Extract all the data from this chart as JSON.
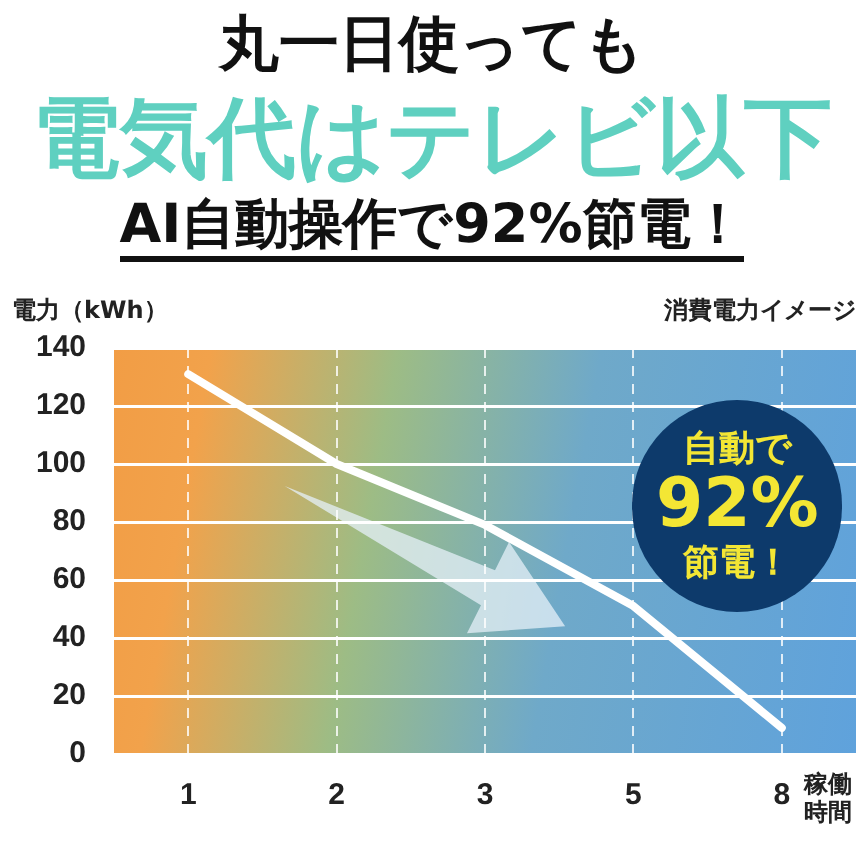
{
  "chart_data": {
    "type": "line",
    "title": "丸一日使っても",
    "subtitle": "電気代はテレビ以下",
    "xlabel": "稼働時間",
    "ylabel": "電力（kWh）",
    "annotations": [
      "AI自動操作で92%節電！",
      "消費電力イメージ",
      "自動で",
      "92%",
      "節電！"
    ],
    "categories": [
      "1",
      "2",
      "3",
      "5",
      "8"
    ],
    "series": [
      {
        "color": "#ffffff",
        "values": [
          131,
          100,
          79,
          51,
          9
        ]
      }
    ],
    "ylim": [
      0,
      140
    ],
    "yticks": [
      0,
      20,
      40,
      60,
      80,
      100,
      120,
      140
    ],
    "grid": true,
    "legend": false,
    "marker": "none",
    "line_style": "solid"
  }
}
